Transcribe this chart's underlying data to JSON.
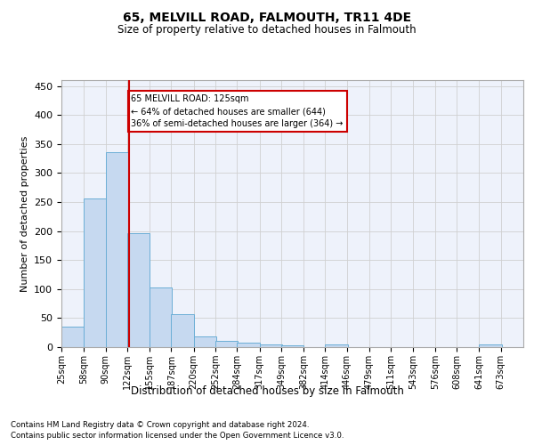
{
  "title": "65, MELVILL ROAD, FALMOUTH, TR11 4DE",
  "subtitle": "Size of property relative to detached houses in Falmouth",
  "xlabel": "Distribution of detached houses by size in Falmouth",
  "ylabel": "Number of detached properties",
  "footer_line1": "Contains HM Land Registry data © Crown copyright and database right 2024.",
  "footer_line2": "Contains public sector information licensed under the Open Government Licence v3.0.",
  "property_size": 125,
  "property_label": "65 MELVILL ROAD: 125sqm",
  "annotation_line1": "← 64% of detached houses are smaller (644)",
  "annotation_line2": "36% of semi-detached houses are larger (364) →",
  "bar_color": "#c6d9f0",
  "bar_edge_color": "#6baed6",
  "marker_color": "#cc0000",
  "annotation_box_color": "#cc0000",
  "grid_color": "#d0d0d0",
  "background_color": "#eef2fb",
  "bin_labels": [
    "25sqm",
    "58sqm",
    "90sqm",
    "122sqm",
    "155sqm",
    "187sqm",
    "220sqm",
    "252sqm",
    "284sqm",
    "317sqm",
    "349sqm",
    "382sqm",
    "414sqm",
    "446sqm",
    "479sqm",
    "511sqm",
    "543sqm",
    "576sqm",
    "608sqm",
    "641sqm",
    "673sqm"
  ],
  "bin_edges": [
    25,
    58,
    90,
    122,
    155,
    187,
    220,
    252,
    284,
    317,
    349,
    382,
    414,
    446,
    479,
    511,
    543,
    576,
    608,
    641,
    673
  ],
  "bar_heights": [
    35,
    256,
    336,
    197,
    103,
    57,
    19,
    10,
    7,
    5,
    3,
    0,
    5,
    0,
    0,
    0,
    0,
    0,
    0,
    5,
    0
  ],
  "ylim": [
    0,
    460
  ],
  "yticks": [
    0,
    50,
    100,
    150,
    200,
    250,
    300,
    350,
    400,
    450
  ]
}
